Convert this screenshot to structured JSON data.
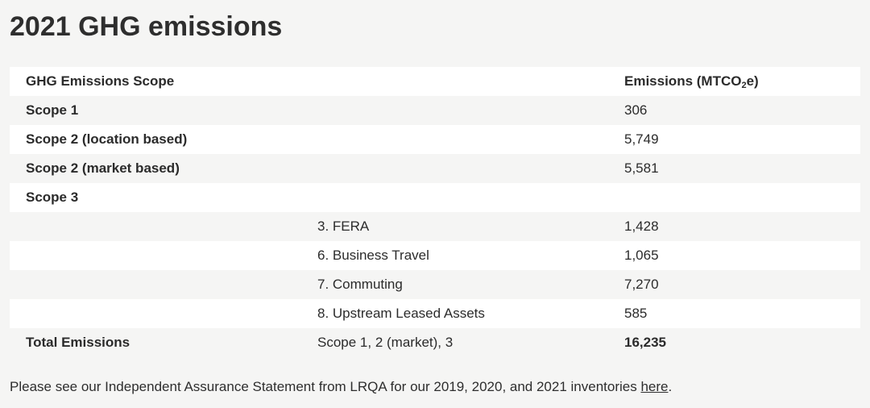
{
  "title": "2021 GHG emissions",
  "table": {
    "header": {
      "scope": "GHG Emissions Scope",
      "emissions_main": "Emissions (MTCO",
      "emissions_sub": "2",
      "emissions_end": "e)"
    },
    "rows": [
      {
        "scope": "Scope 1",
        "category": "",
        "value": "306"
      },
      {
        "scope": "Scope 2 (location based)",
        "category": "",
        "value": "5,749"
      },
      {
        "scope": "Scope 2 (market based)",
        "category": "",
        "value": "5,581"
      },
      {
        "scope": "Scope 3",
        "category": "",
        "value": ""
      },
      {
        "scope": "",
        "category": "3. FERA",
        "value": "1,428"
      },
      {
        "scope": "",
        "category": "6. Business Travel",
        "value": "1,065"
      },
      {
        "scope": "",
        "category": "7. Commuting",
        "value": "7,270"
      },
      {
        "scope": "",
        "category": "8. Upstream Leased Assets",
        "value": "585"
      },
      {
        "scope": "Total Emissions",
        "category": "Scope 1, 2 (market), 3",
        "value": "16,235"
      }
    ]
  },
  "footer": {
    "text": "Please see our Independent Assurance Statement from LRQA for our 2019, 2020, and 2021 inventories ",
    "link_label": "here",
    "end": "."
  },
  "colors": {
    "background": "#f5f5f4",
    "row_stripe": "#ffffff",
    "text": "#2b2b2b"
  }
}
